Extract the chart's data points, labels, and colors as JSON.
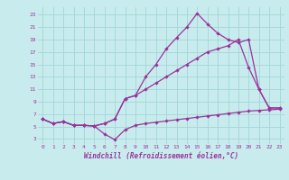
{
  "xlabel": "Windchill (Refroidissement éolien,°C)",
  "bg_color": "#c8ecee",
  "grid_color": "#a8d8da",
  "line_color": "#993399",
  "x_ticks": [
    0,
    1,
    2,
    3,
    4,
    5,
    6,
    7,
    8,
    9,
    10,
    11,
    12,
    13,
    14,
    15,
    16,
    17,
    18,
    19,
    20,
    21,
    22,
    23
  ],
  "y_ticks": [
    3,
    5,
    7,
    9,
    11,
    13,
    15,
    17,
    19,
    21,
    23
  ],
  "ylim": [
    2.2,
    24.2
  ],
  "xlim": [
    -0.5,
    23.5
  ],
  "line1_x": [
    0,
    1,
    2,
    3,
    4,
    5,
    6,
    7,
    8,
    9,
    10,
    11,
    12,
    13,
    14,
    15,
    16,
    17,
    18,
    19,
    20,
    21,
    22,
    23
  ],
  "line1_y": [
    6.2,
    5.5,
    5.8,
    5.2,
    5.2,
    5.1,
    5.5,
    6.2,
    9.5,
    10.0,
    13.0,
    15.0,
    17.5,
    19.3,
    21.0,
    23.2,
    21.5,
    20.0,
    19.0,
    18.5,
    19.0,
    11.0,
    8.0,
    8.0
  ],
  "line2_x": [
    0,
    1,
    2,
    3,
    4,
    5,
    6,
    7,
    8,
    9,
    10,
    11,
    12,
    13,
    14,
    15,
    16,
    17,
    18,
    19,
    20,
    21,
    22,
    23
  ],
  "line2_y": [
    6.2,
    5.5,
    5.8,
    5.2,
    5.2,
    5.1,
    5.5,
    6.2,
    9.5,
    10.0,
    11.0,
    12.0,
    13.0,
    14.0,
    15.0,
    16.0,
    17.0,
    17.5,
    18.0,
    19.0,
    14.5,
    11.0,
    8.0,
    8.0
  ],
  "line3_x": [
    0,
    1,
    2,
    3,
    4,
    5,
    6,
    7,
    8,
    9,
    10,
    11,
    12,
    13,
    14,
    15,
    16,
    17,
    18,
    19,
    20,
    21,
    22,
    23
  ],
  "line3_y": [
    6.2,
    5.5,
    5.8,
    5.2,
    5.2,
    5.1,
    3.8,
    2.9,
    4.5,
    5.2,
    5.5,
    5.7,
    5.9,
    6.1,
    6.3,
    6.5,
    6.7,
    6.9,
    7.1,
    7.3,
    7.5,
    7.6,
    7.7,
    7.8
  ]
}
